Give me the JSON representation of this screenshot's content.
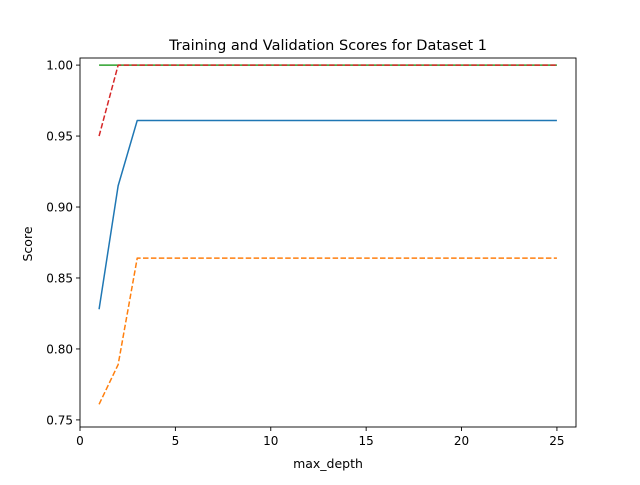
{
  "chart_data": {
    "type": "line",
    "title": "Training and Validation Scores for Dataset 1",
    "xlabel": "max_depth",
    "ylabel": "Score",
    "xlim": [
      0,
      26
    ],
    "ylim": [
      0.745,
      1.005
    ],
    "xticks": [
      0,
      5,
      10,
      15,
      20,
      25
    ],
    "yticks": [
      0.75,
      0.8,
      0.85,
      0.9,
      0.95,
      1.0
    ],
    "xtick_labels": [
      "0",
      "5",
      "10",
      "15",
      "20",
      "25"
    ],
    "ytick_labels": [
      "0.75",
      "0.80",
      "0.85",
      "0.90",
      "0.95",
      "1.00"
    ],
    "grid": false,
    "legend": false,
    "x": [
      1,
      2,
      3,
      4,
      5,
      6,
      7,
      8,
      9,
      10,
      11,
      12,
      13,
      14,
      15,
      16,
      17,
      18,
      19,
      20,
      21,
      22,
      23,
      24,
      25
    ],
    "series": [
      {
        "color": "#1f77b4",
        "dash": "solid",
        "values": [
          0.828,
          0.915,
          0.961,
          0.961,
          0.961,
          0.961,
          0.961,
          0.961,
          0.961,
          0.961,
          0.961,
          0.961,
          0.961,
          0.961,
          0.961,
          0.961,
          0.961,
          0.961,
          0.961,
          0.961,
          0.961,
          0.961,
          0.961,
          0.961,
          0.961
        ]
      },
      {
        "color": "#ff7f0e",
        "dash": "dashed",
        "values": [
          0.761,
          0.789,
          0.864,
          0.864,
          0.864,
          0.864,
          0.864,
          0.864,
          0.864,
          0.864,
          0.864,
          0.864,
          0.864,
          0.864,
          0.864,
          0.864,
          0.864,
          0.864,
          0.864,
          0.864,
          0.864,
          0.864,
          0.864,
          0.864,
          0.864
        ]
      },
      {
        "color": "#2ca02c",
        "dash": "solid",
        "values": [
          1.0,
          1.0,
          1.0,
          1.0,
          1.0,
          1.0,
          1.0,
          1.0,
          1.0,
          1.0,
          1.0,
          1.0,
          1.0,
          1.0,
          1.0,
          1.0,
          1.0,
          1.0,
          1.0,
          1.0,
          1.0,
          1.0,
          1.0,
          1.0,
          1.0
        ]
      },
      {
        "color": "#d62728",
        "dash": "dashed",
        "values": [
          0.95,
          1.0,
          1.0,
          1.0,
          1.0,
          1.0,
          1.0,
          1.0,
          1.0,
          1.0,
          1.0,
          1.0,
          1.0,
          1.0,
          1.0,
          1.0,
          1.0,
          1.0,
          1.0,
          1.0,
          1.0,
          1.0,
          1.0,
          1.0,
          1.0
        ]
      }
    ]
  }
}
